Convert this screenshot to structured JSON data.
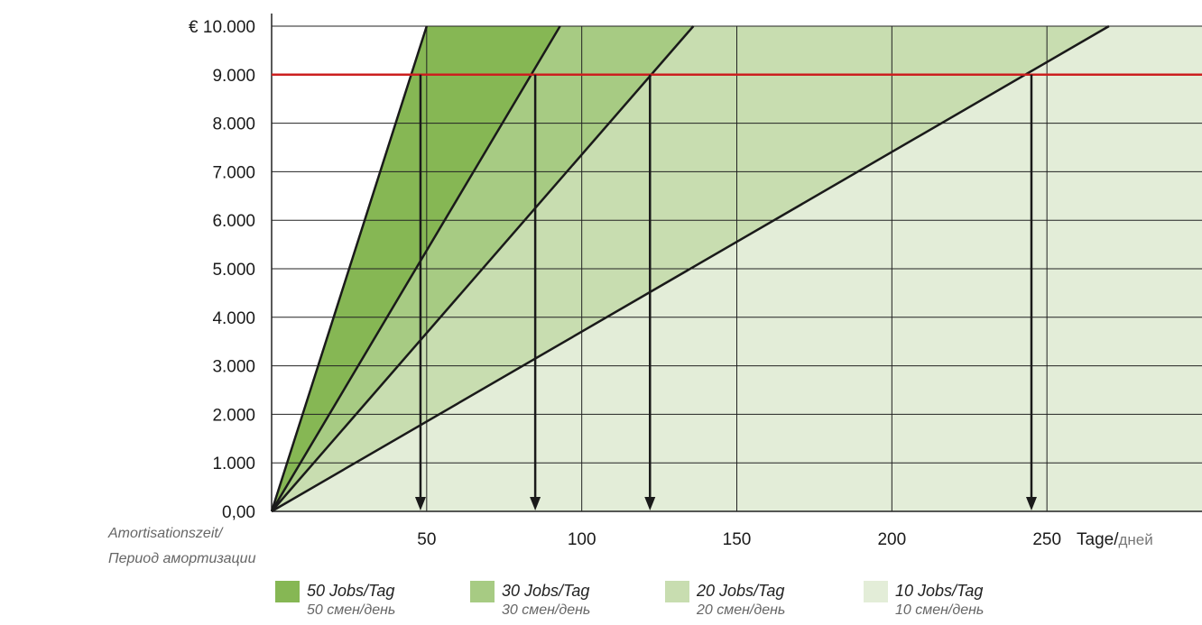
{
  "chart_data": {
    "type": "area",
    "xlim": [
      0,
      300
    ],
    "ylim": [
      0,
      10000
    ],
    "x_ticks": [
      50,
      100,
      150,
      200,
      250
    ],
    "x_tick_labels": [
      "50",
      "100",
      "150",
      "200",
      "250"
    ],
    "y_ticks": [
      0,
      1000,
      2000,
      3000,
      4000,
      5000,
      6000,
      7000,
      8000,
      9000,
      10000
    ],
    "y_tick_labels": [
      "0,00",
      "1.000",
      "2.000",
      "3.000",
      "4.000",
      "5.000",
      "6.000",
      "7.000",
      "8.000",
      "9.000",
      "€ 10.000"
    ],
    "highlight_y_index": 9,
    "x_unit_label": "Tage/",
    "x_unit_label_ru": "дней",
    "amortisation_label": "Amortisationszeit/",
    "amortisation_label_ru": "Период амортизации",
    "threshold": {
      "value": 9000,
      "color": "#cc1f1f"
    },
    "grid": true,
    "legend_position": "bottom",
    "series": [
      {
        "name": "50 Jobs/Tag",
        "name_ru": "50 смен/день",
        "color": "#86b754",
        "x": [
          0,
          50
        ],
        "y": [
          0,
          10000
        ],
        "payback_days": 48
      },
      {
        "name": "30 Jobs/Tag",
        "name_ru": "30 смен/день",
        "color": "#a7cb83",
        "x": [
          0,
          93
        ],
        "y": [
          0,
          10000
        ],
        "payback_days": 85
      },
      {
        "name": "20 Jobs/Tag",
        "name_ru": "20 смен/день",
        "color": "#c8ddb0",
        "x": [
          0,
          136
        ],
        "y": [
          0,
          10000
        ],
        "payback_days": 122
      },
      {
        "name": "10 Jobs/Tag",
        "name_ru": "10 смен/день",
        "color": "#e3edd8",
        "x": [
          0,
          270
        ],
        "y": [
          0,
          10000
        ],
        "payback_days": 245
      }
    ]
  }
}
